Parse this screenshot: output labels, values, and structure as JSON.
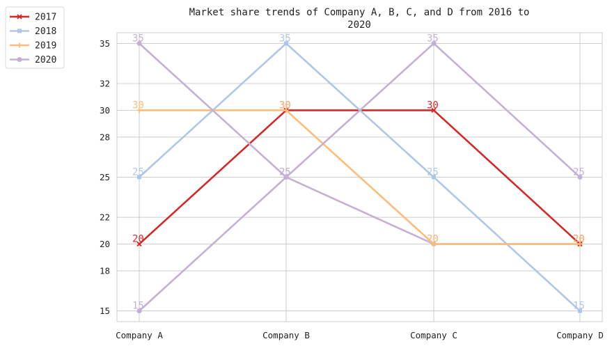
{
  "chart_data": {
    "type": "line",
    "title_line1": "Market share trends of Company A, B, C, and D from 2016 to",
    "title_line2": "2020",
    "categories": [
      "Company A",
      "Company B",
      "Company C",
      "Company D"
    ],
    "series": [
      {
        "name": "2017",
        "values": [
          20,
          30,
          30,
          20
        ],
        "color": "#d62728",
        "marker": "x"
      },
      {
        "name": "2018",
        "values": [
          25,
          35,
          25,
          15
        ],
        "color": "#aec7e8",
        "marker": "square"
      },
      {
        "name": "2019",
        "values": [
          30,
          30,
          20,
          20
        ],
        "color": "#ffbb78",
        "marker": "plus"
      },
      {
        "name": "2020",
        "values": [
          35,
          25,
          35,
          25
        ],
        "color": "#c5b0d5",
        "marker": "circle"
      }
    ],
    "extra_series_2020_overlay": [
      15,
      25,
      20,
      20
    ],
    "yticks": [
      15,
      18,
      20,
      22,
      25,
      28,
      30,
      32,
      35
    ],
    "ylim": [
      14.2,
      35.8
    ],
    "grid": true,
    "legend_position": "outside-top-left"
  }
}
